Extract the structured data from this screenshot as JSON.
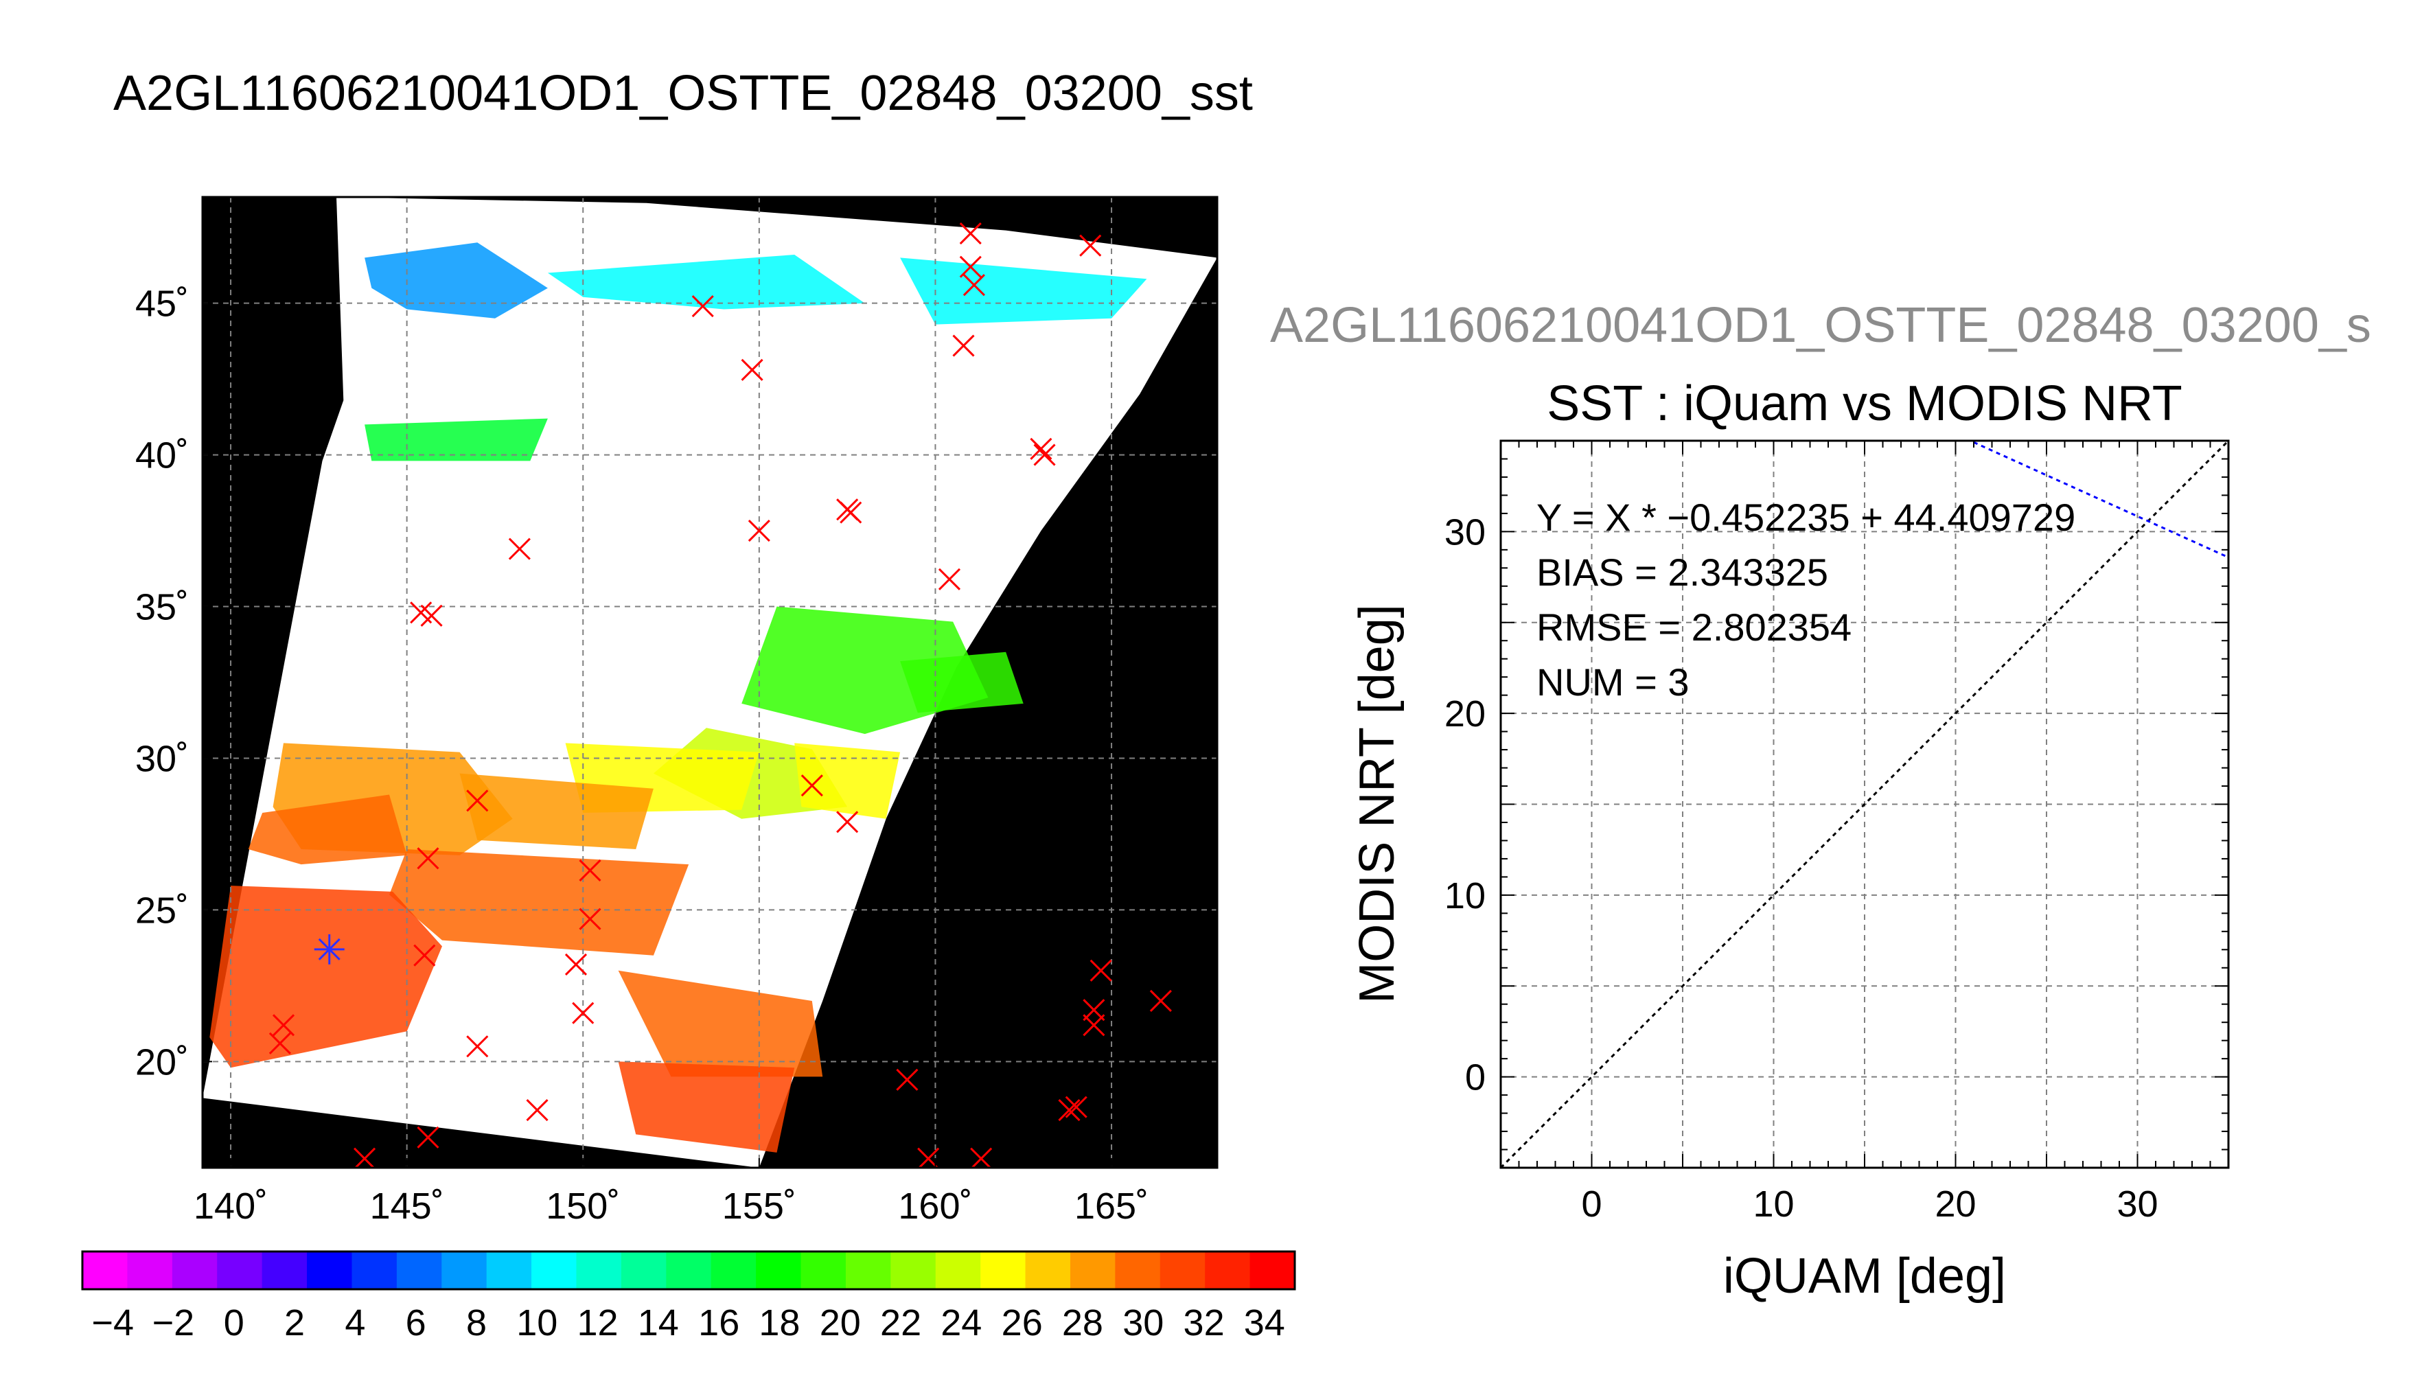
{
  "chart_data": [
    {
      "type": "map",
      "title": "A2GL11606210041OD1_OSTTE_02848_03200_sst",
      "xlim": [
        139.2,
        168.0
      ],
      "ylim": [
        16.5,
        48.5
      ],
      "x_ticks": [
        140,
        145,
        150,
        155,
        160,
        165
      ],
      "y_ticks": [
        20,
        25,
        30,
        35,
        40,
        45
      ],
      "x_tick_labels": [
        "140˚",
        "145˚",
        "150˚",
        "155˚",
        "160˚",
        "165˚"
      ],
      "y_tick_labels": [
        "20˚",
        "25˚",
        "30˚",
        "35˚",
        "40˚",
        "45˚"
      ],
      "grid": true,
      "background": "#000000",
      "swath_polygon": [
        [
          143.0,
          48.5
        ],
        [
          151.8,
          48.3
        ],
        [
          162.0,
          47.4
        ],
        [
          168.0,
          46.5
        ],
        [
          165.8,
          42.0
        ],
        [
          163.0,
          37.5
        ],
        [
          160.6,
          33.0
        ],
        [
          158.6,
          28.0
        ],
        [
          156.8,
          22.0
        ],
        [
          155.0,
          16.5
        ],
        [
          139.2,
          18.8
        ],
        [
          142.6,
          39.8
        ],
        [
          143.2,
          41.8
        ]
      ],
      "sst_patches": [
        {
          "value": 8,
          "polygon": [
            [
              143.8,
              46.5
            ],
            [
              147.0,
              47.0
            ],
            [
              149.0,
              45.5
            ],
            [
              147.5,
              44.5
            ],
            [
              145.0,
              44.8
            ],
            [
              144.0,
              45.5
            ]
          ]
        },
        {
          "value": 10,
          "polygon": [
            [
              149.0,
              46.0
            ],
            [
              156.0,
              46.6
            ],
            [
              158.0,
              45.0
            ],
            [
              154.0,
              44.8
            ],
            [
              150.0,
              45.2
            ]
          ]
        },
        {
          "value": 10,
          "polygon": [
            [
              159.0,
              46.5
            ],
            [
              166.0,
              45.8
            ],
            [
              165.0,
              44.5
            ],
            [
              160.0,
              44.3
            ]
          ]
        },
        {
          "value": 16,
          "polygon": [
            [
              143.8,
              41.0
            ],
            [
              149.0,
              41.2
            ],
            [
              148.5,
              39.8
            ],
            [
              144.0,
              39.8
            ]
          ]
        },
        {
          "value": 20,
          "polygon": [
            [
              155.5,
              35.0
            ],
            [
              160.5,
              34.5
            ],
            [
              161.5,
              32.0
            ],
            [
              158.0,
              30.8
            ],
            [
              154.5,
              31.8
            ]
          ]
        },
        {
          "value": 20,
          "polygon": [
            [
              159.0,
              33.2
            ],
            [
              162.0,
              33.5
            ],
            [
              162.5,
              31.8
            ],
            [
              159.5,
              31.5
            ]
          ]
        },
        {
          "value": 24,
          "polygon": [
            [
              153.5,
              31.0
            ],
            [
              156.5,
              30.3
            ],
            [
              157.5,
              28.4
            ],
            [
              154.5,
              28.0
            ],
            [
              152.0,
              29.5
            ]
          ]
        },
        {
          "value": 26,
          "polygon": [
            [
              149.5,
              30.5
            ],
            [
              155.0,
              30.2
            ],
            [
              154.5,
              28.3
            ],
            [
              150.0,
              28.2
            ]
          ]
        },
        {
          "value": 26,
          "polygon": [
            [
              156.0,
              30.5
            ],
            [
              159.0,
              30.2
            ],
            [
              158.6,
              28.0
            ],
            [
              156.2,
              28.4
            ]
          ]
        },
        {
          "value": 28,
          "polygon": [
            [
              141.5,
              30.5
            ],
            [
              146.5,
              30.2
            ],
            [
              148.0,
              28.0
            ],
            [
              146.5,
              26.8
            ],
            [
              142.0,
              27.0
            ],
            [
              141.2,
              28.4
            ]
          ]
        },
        {
          "value": 28,
          "polygon": [
            [
              146.5,
              29.5
            ],
            [
              152.0,
              29.0
            ],
            [
              151.5,
              27.0
            ],
            [
              147.0,
              27.3
            ]
          ]
        },
        {
          "value": 30,
          "polygon": [
            [
              140.9,
              28.2
            ],
            [
              144.5,
              28.8
            ],
            [
              145.0,
              26.8
            ],
            [
              142.0,
              26.5
            ],
            [
              140.5,
              27.0
            ]
          ]
        },
        {
          "value": 30,
          "polygon": [
            [
              145.0,
              27.0
            ],
            [
              153.0,
              26.5
            ],
            [
              152.0,
              23.5
            ],
            [
              146.0,
              24.0
            ],
            [
              144.5,
              25.5
            ]
          ]
        },
        {
          "value": 30,
          "polygon": [
            [
              151.0,
              23.0
            ],
            [
              156.5,
              22.0
            ],
            [
              156.8,
              19.5
            ],
            [
              152.5,
              19.5
            ]
          ]
        },
        {
          "value": 32,
          "polygon": [
            [
              140.0,
              25.8
            ],
            [
              144.6,
              25.6
            ],
            [
              146.0,
              23.8
            ],
            [
              145.0,
              21.0
            ],
            [
              140.0,
              19.8
            ],
            [
              139.4,
              20.8
            ]
          ]
        },
        {
          "value": 32,
          "polygon": [
            [
              151.0,
              20.0
            ],
            [
              156.0,
              19.8
            ],
            [
              155.5,
              17.0
            ],
            [
              151.5,
              17.6
            ]
          ]
        }
      ],
      "iquam_points": [
        [
          161.0,
          47.3
        ],
        [
          164.4,
          46.9
        ],
        [
          161.0,
          46.2
        ],
        [
          161.1,
          45.6
        ],
        [
          153.4,
          44.9
        ],
        [
          160.8,
          43.6
        ],
        [
          154.8,
          42.8
        ],
        [
          163.0,
          40.2
        ],
        [
          163.1,
          40.0
        ],
        [
          157.5,
          38.2
        ],
        [
          157.6,
          38.1
        ],
        [
          155.0,
          37.5
        ],
        [
          148.2,
          36.9
        ],
        [
          160.4,
          35.9
        ],
        [
          145.4,
          34.8
        ],
        [
          145.7,
          34.7
        ],
        [
          156.5,
          29.1
        ],
        [
          157.5,
          27.9
        ],
        [
          147.0,
          28.6
        ],
        [
          145.6,
          26.7
        ],
        [
          150.2,
          26.3
        ],
        [
          150.2,
          24.7
        ],
        [
          145.5,
          23.5
        ],
        [
          149.8,
          23.2
        ],
        [
          150.0,
          21.6
        ],
        [
          141.5,
          21.2
        ],
        [
          141.4,
          20.6
        ],
        [
          147.0,
          20.5
        ],
        [
          148.7,
          18.4
        ],
        [
          145.6,
          17.5
        ],
        [
          143.8,
          16.8
        ],
        [
          159.2,
          19.4
        ],
        [
          159.8,
          16.8
        ],
        [
          161.3,
          16.8
        ],
        [
          163.8,
          18.4
        ],
        [
          164.0,
          18.5
        ],
        [
          164.7,
          23.0
        ],
        [
          164.5,
          21.7
        ],
        [
          164.5,
          21.2
        ],
        [
          166.4,
          22.0
        ]
      ],
      "matchup_points": [
        [
          142.8,
          23.7
        ]
      ]
    },
    {
      "type": "colorbar",
      "range": [
        -5,
        35
      ],
      "tick_values": [
        -4,
        -2,
        0,
        2,
        4,
        6,
        8,
        10,
        12,
        14,
        16,
        18,
        20,
        22,
        24,
        26,
        28,
        30,
        32,
        34
      ],
      "tick_labels": [
        "−4",
        "−2",
        "0",
        "2",
        "4",
        "6",
        "8",
        "10",
        "12",
        "14",
        "16",
        "18",
        "20",
        "22",
        "24",
        "26",
        "28",
        "30",
        "32",
        "34"
      ],
      "colors": [
        "#ff00ff",
        "#dd00ff",
        "#aa00ff",
        "#7700ff",
        "#4400ff",
        "#0000ff",
        "#0033ff",
        "#0066ff",
        "#0099ff",
        "#00ccff",
        "#00ffff",
        "#00ffcc",
        "#00ff99",
        "#00ff66",
        "#00ff33",
        "#00ff00",
        "#33ff00",
        "#66ff00",
        "#99ff00",
        "#ccff00",
        "#ffff00",
        "#ffcc00",
        "#ff9900",
        "#ff6600",
        "#ff4400",
        "#ff2200",
        "#ff0000"
      ]
    },
    {
      "type": "scatter",
      "header": "A2GL11606210041OD1_OSTTE_02848_03200_s",
      "title": "SST : iQuam vs MODIS NRT",
      "xlabel": "iQUAM [deg]",
      "ylabel": "MODIS NRT [deg]",
      "xlim": [
        -5,
        35
      ],
      "ylim": [
        -5,
        35
      ],
      "x_ticks": [
        0,
        10,
        20,
        30
      ],
      "y_ticks": [
        0,
        10,
        20,
        30
      ],
      "grid": true,
      "stats": [
        "Y = X * −0.452235 + 44.409729",
        "BIAS = 2.343325",
        "RMSE = 2.802354",
        "NUM = 3"
      ],
      "identity_line": [
        [
          -5,
          -5
        ],
        [
          35,
          35
        ]
      ],
      "fit_line": {
        "slope": -0.452235,
        "intercept": 44.409729,
        "color": "#0000ff"
      }
    }
  ]
}
